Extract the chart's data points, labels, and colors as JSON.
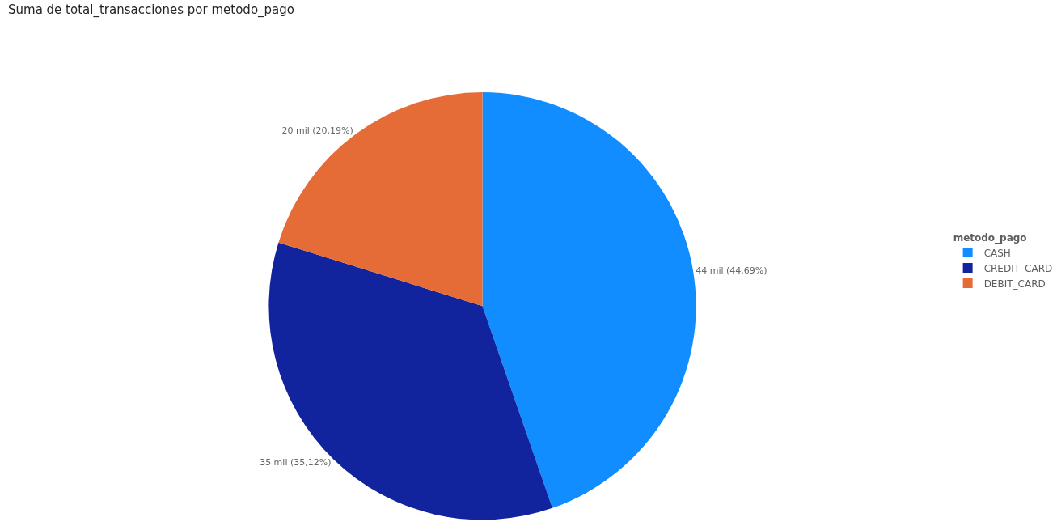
{
  "chart_data": {
    "type": "pie",
    "title": "Suma de total_transacciones por metodo_pago",
    "legend_title": "metodo_pago",
    "legend": "right",
    "categories": [
      "CASH",
      "CREDIT_CARD",
      "DEBIT_CARD"
    ],
    "values": [
      44.69,
      35.12,
      20.19
    ],
    "value_labels": [
      "44 mil (44,69%)",
      "35 mil (35,12%)",
      "20 mil (20,19%)"
    ],
    "colors": [
      "#118dff",
      "#12239e",
      "#e66c37"
    ]
  }
}
